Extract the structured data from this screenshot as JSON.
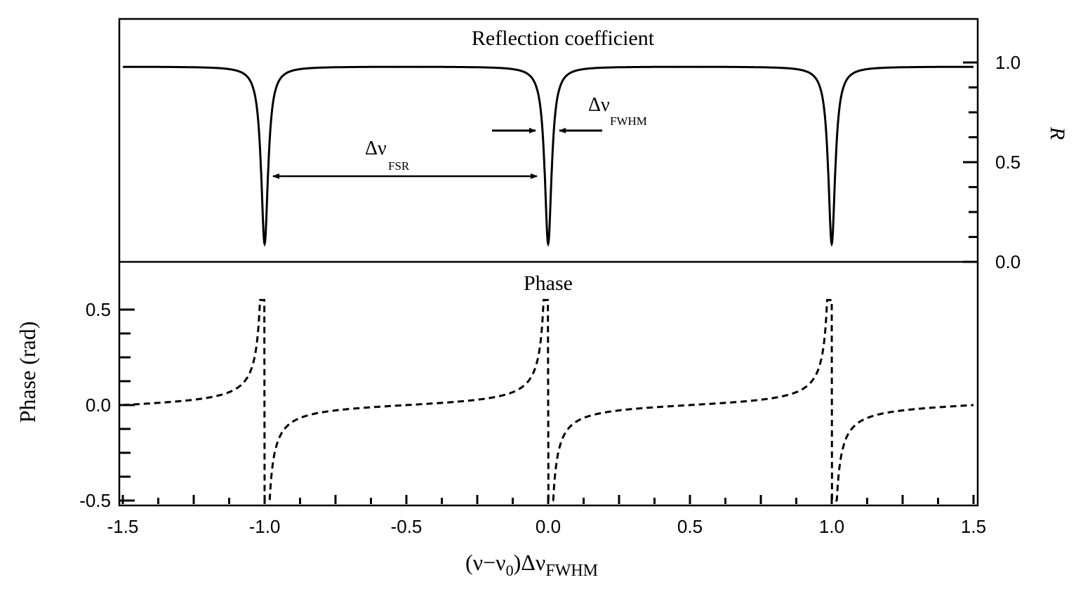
{
  "chart_data": [
    {
      "type": "line",
      "title": "Reflection coefficient",
      "ylabel": "R",
      "y_axis_side": "right",
      "xlim": [
        -1.5,
        1.5
      ],
      "ylim": [
        0.0,
        1.0
      ],
      "yticks": [
        "0.0",
        "0.5",
        "1.0"
      ],
      "yticks_values": [
        0.0,
        0.5,
        1.0
      ],
      "resonances": [
        -1.0,
        0.0,
        1.0
      ],
      "R_off_resonance": 0.98,
      "R_on_resonance": 0.09,
      "linewidth_fwhm": 0.03,
      "line_style": "solid",
      "annotations": {
        "fsr": {
          "symbol": "Δν",
          "subscript": "FSR",
          "from": -1.0,
          "to": 0.0
        },
        "fwhm": {
          "symbol": "Δν",
          "subscript": "FWHM"
        }
      }
    },
    {
      "type": "line",
      "title": "Phase",
      "ylabel": "Phase (rad)",
      "y_axis_side": "left",
      "xlim": [
        -1.5,
        1.5
      ],
      "ylim": [
        -0.5,
        0.5
      ],
      "yticks": [
        "-0.5",
        "0.0",
        "0.5"
      ],
      "yticks_values": [
        -0.5,
        0.0,
        0.5
      ],
      "resonances": [
        -1.0,
        0.0,
        1.0
      ],
      "phase_max": 0.55,
      "phase_min": -0.5,
      "line_style": "dashed"
    }
  ],
  "x_axis": {
    "label_main": "(ν−ν",
    "label_sub0": "0",
    "label_mid": ")Δν",
    "label_sub": "FWHM",
    "ticks": [
      "-1.5",
      "-1.0",
      "-0.5",
      "0.0",
      "0.5",
      "1.0",
      "1.5"
    ],
    "tick_values": [
      -1.5,
      -1.0,
      -0.5,
      0.0,
      0.5,
      1.0,
      1.5
    ]
  }
}
